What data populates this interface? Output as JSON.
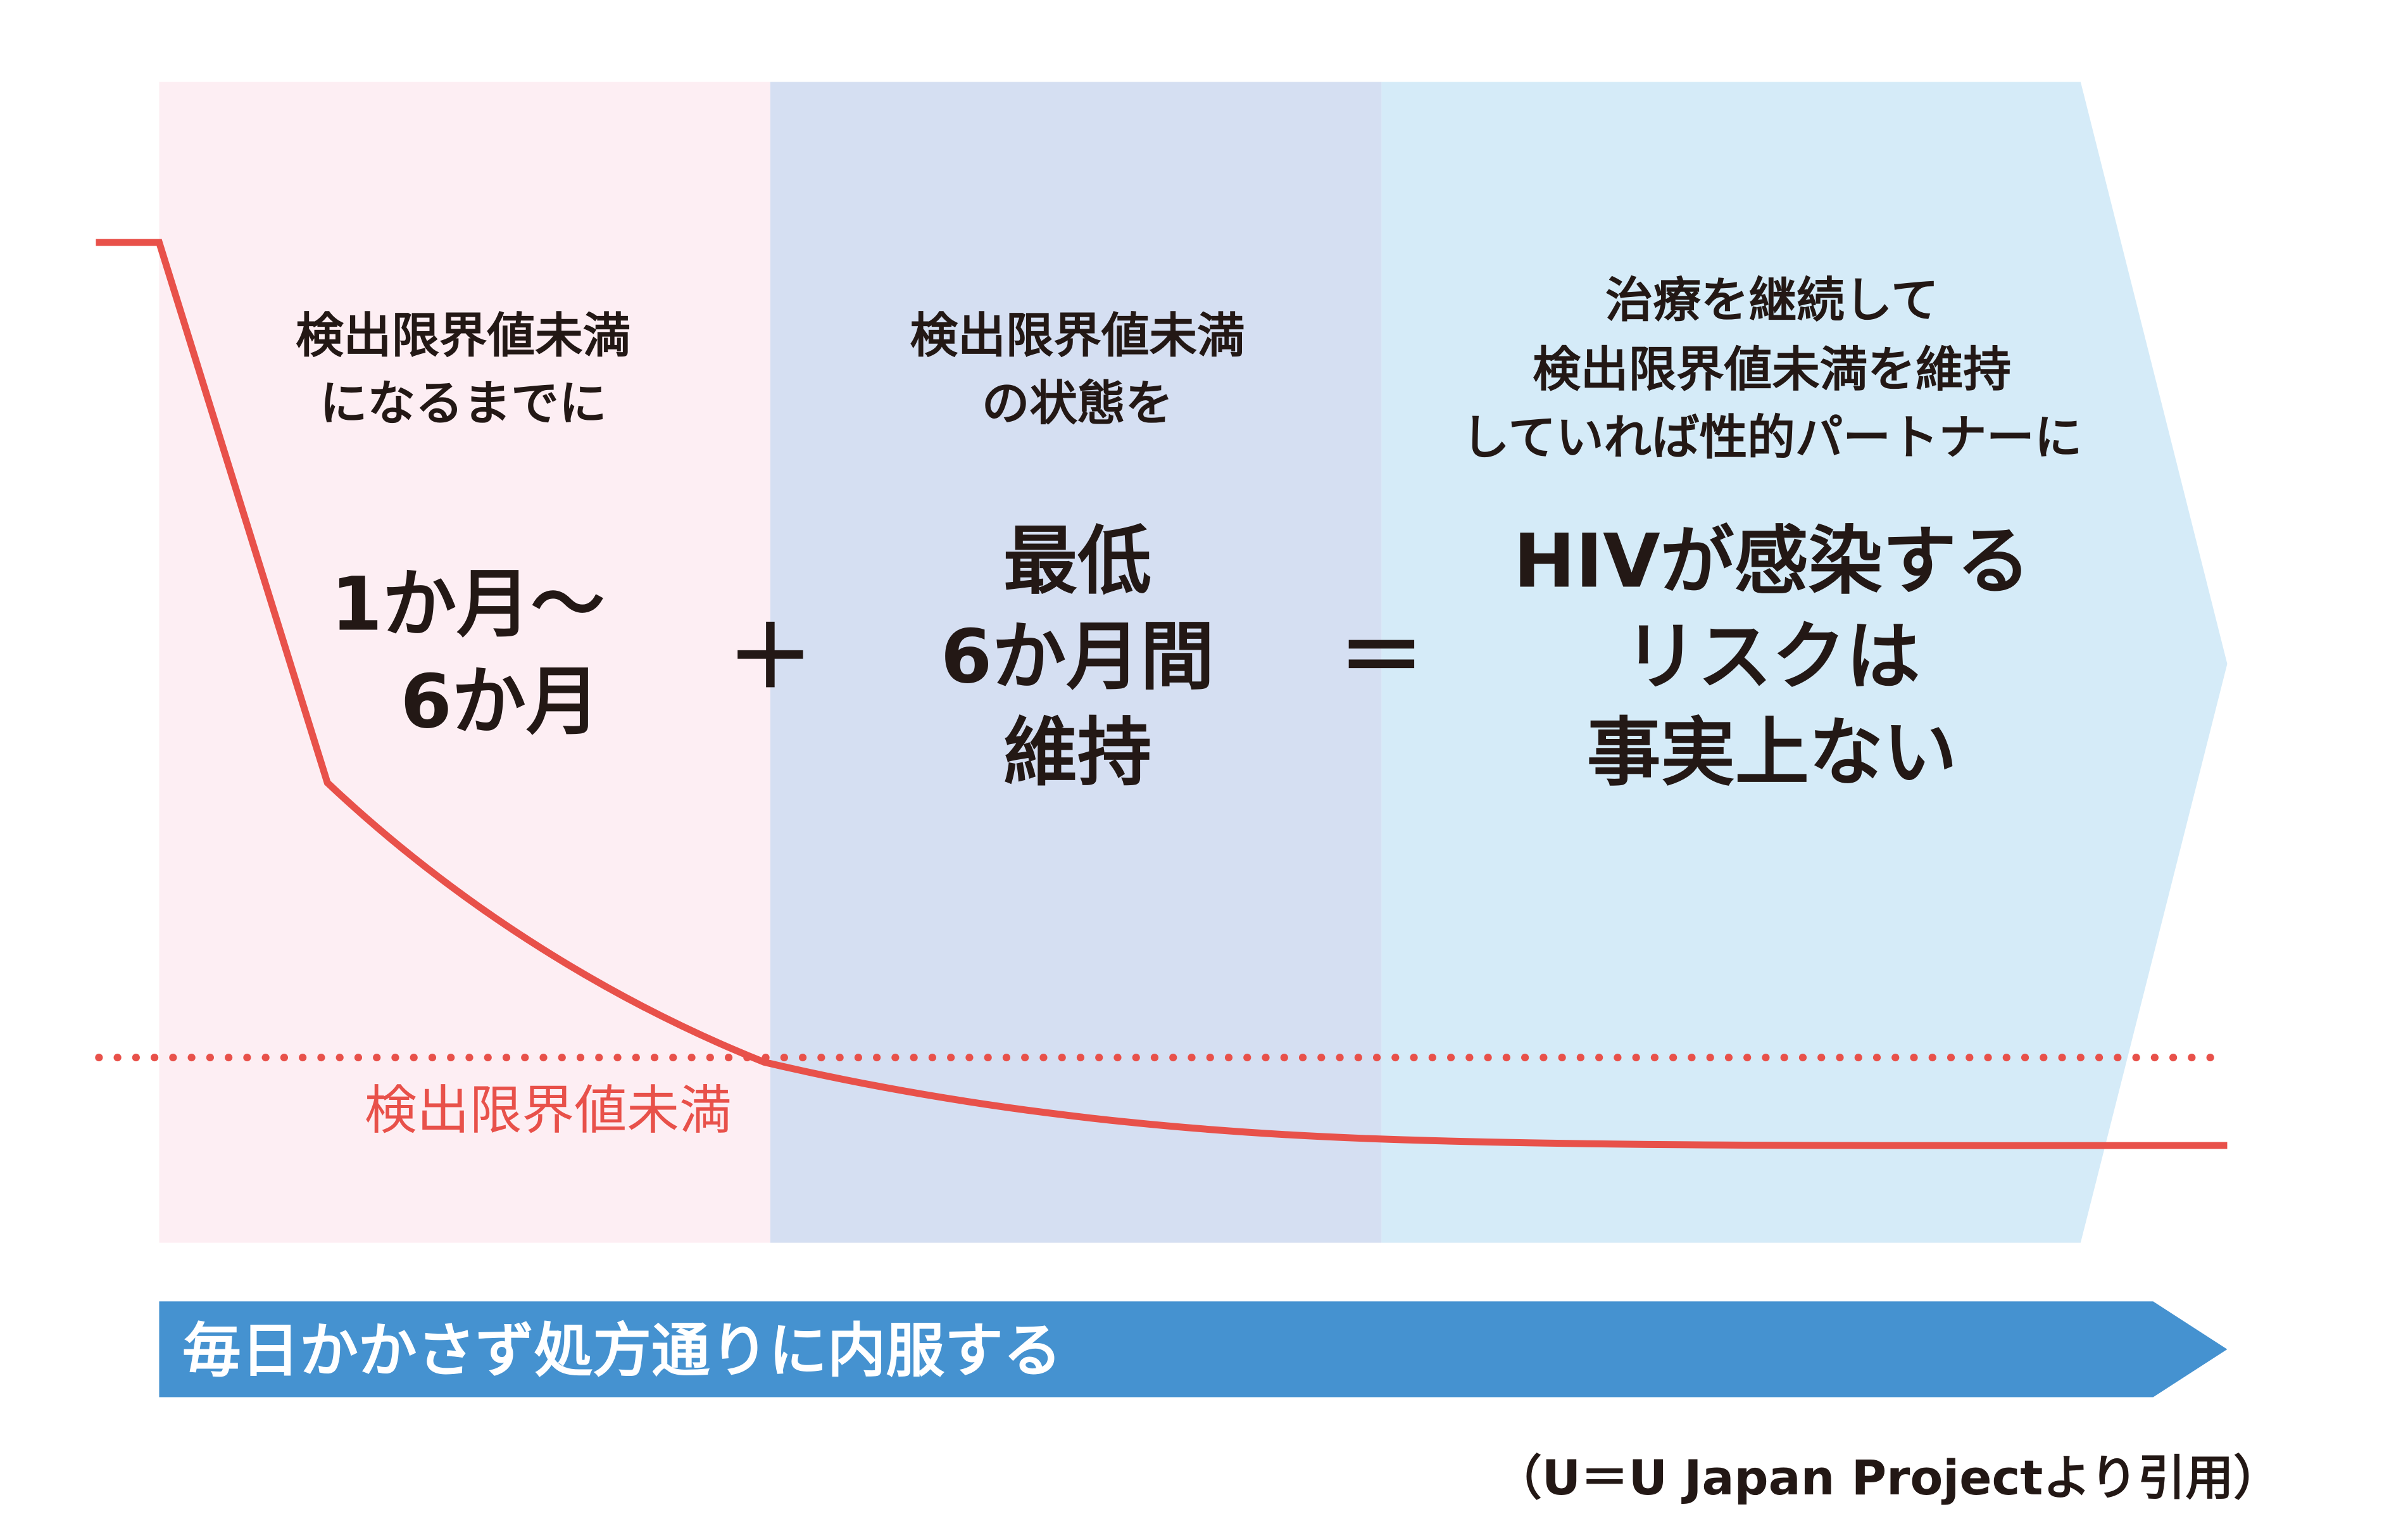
{
  "colors": {
    "phase1_bg": "#fdeef3",
    "phase2_bg": "#d5dff2",
    "phase3_bg": "#d5ebf8",
    "viral_load_line": "#e8514a",
    "treatment_bar": "#4592d0",
    "text": "#231815"
  },
  "phase1": {
    "caption": [
      "検出限界値未満",
      "になるまでに"
    ],
    "highlight": [
      "1か月〜",
      "6か月"
    ]
  },
  "plus": "＋",
  "phase2": {
    "caption": [
      "検出限界値未満",
      "の状態を"
    ],
    "highlight": [
      "最低",
      "6か月間",
      "維持"
    ]
  },
  "equals": "＝",
  "phase3": {
    "caption": [
      "治療を継続して",
      "検出限界値未満を維持",
      "していれば性的パートナーに"
    ],
    "highlight": [
      "HIVが感染する",
      "リスクは",
      "事実上ない"
    ]
  },
  "threshold_label": "検出限界値未満",
  "treatment_bar_label": "毎日かかさず処方通りに内服する",
  "citation": "（U＝U Japan Projectより引用）"
}
